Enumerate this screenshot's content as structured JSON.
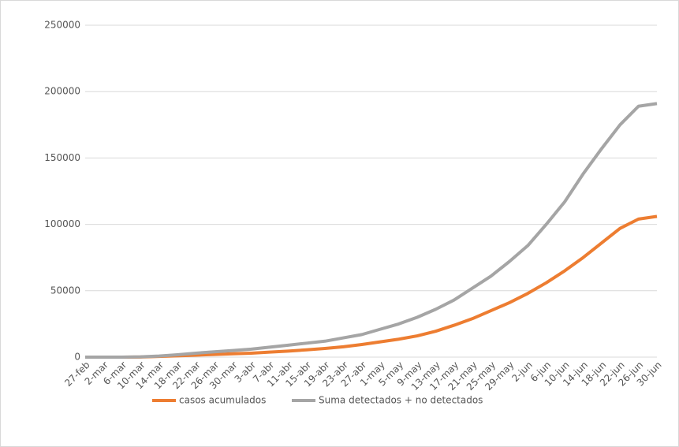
{
  "chart_data": {
    "type": "line",
    "categories": [
      "27-feb",
      "2-mar",
      "6-mar",
      "10-mar",
      "14-mar",
      "18-mar",
      "22-mar",
      "26-mar",
      "30-mar",
      "3-abr",
      "7-abr",
      "11-abr",
      "15-abr",
      "19-abr",
      "23-abr",
      "27-abr",
      "1-may",
      "5-may",
      "9-may",
      "13-may",
      "17-may",
      "21-may",
      "25-may",
      "29-may",
      "2-jun",
      "6-jun",
      "10-jun",
      "14-jun",
      "18-jun",
      "22-jun",
      "26-jun",
      "30-jun"
    ],
    "series": [
      {
        "name": "casos acumulados",
        "color": "#ed7d31",
        "values": [
          0,
          0,
          0,
          100,
          500,
          1000,
          1500,
          2000,
          2500,
          3000,
          3800,
          4500,
          5500,
          6500,
          7800,
          9500,
          11500,
          13500,
          16000,
          19500,
          24000,
          29000,
          35000,
          41000,
          48000,
          56000,
          65000,
          75000,
          86000,
          97000,
          104000,
          106000
        ]
      },
      {
        "name": "Suma detectados + no detectados",
        "color": "#a5a5a5",
        "values": [
          0,
          0,
          0,
          200,
          800,
          1800,
          3000,
          4000,
          5000,
          6000,
          7500,
          9000,
          10500,
          12000,
          14500,
          17000,
          21000,
          25000,
          30000,
          36000,
          43000,
          52000,
          61000,
          72000,
          84000,
          100000,
          117000,
          138000,
          157000,
          175000,
          189000,
          191000
        ]
      }
    ],
    "ylim": [
      0,
      250000
    ],
    "yticks": [
      0,
      50000,
      100000,
      150000,
      200000,
      250000
    ],
    "grid": true,
    "legend": "bottom"
  }
}
